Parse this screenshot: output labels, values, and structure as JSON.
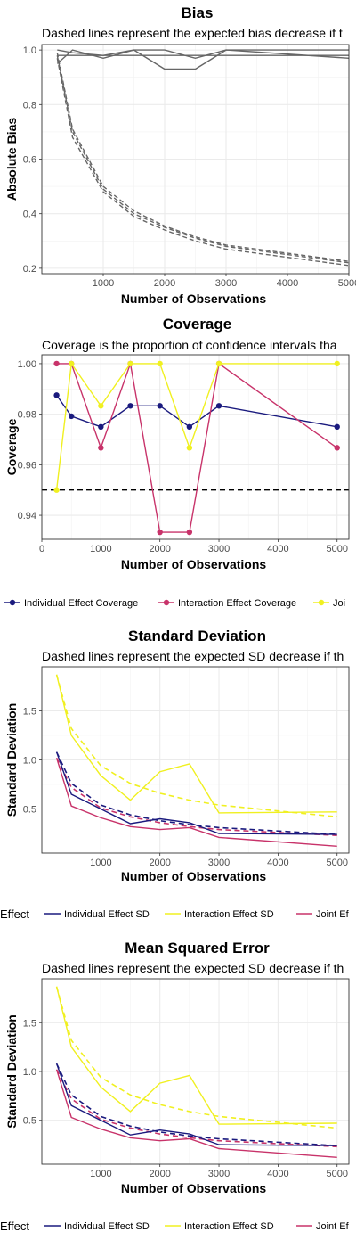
{
  "chart_data": [
    {
      "type": "line",
      "title": "Bias",
      "subtitle": "Dashed lines represent the expected bias decrease if t",
      "xlabel": "Number of Observations",
      "ylabel": "Absolute Bias",
      "xlim": [
        0,
        5000
      ],
      "ylim": [
        0.18,
        1.02
      ],
      "xticks": [
        1000,
        2000,
        3000,
        4000,
        5000
      ],
      "yticks": [
        0.2,
        0.4,
        0.6,
        0.8,
        1.0
      ],
      "ytick_labels": [
        "0.2",
        "0.4",
        "0.6",
        "0.8",
        "1.0"
      ],
      "grid": true,
      "line_color": "#666666",
      "x": [
        250,
        500,
        1000,
        1500,
        2000,
        2500,
        3000,
        5000
      ],
      "series": [
        {
          "values": [
            0.95,
            1.0,
            0.97,
            1.0,
            0.93,
            0.93,
            1.0,
            0.97
          ],
          "dashed": false
        },
        {
          "values": [
            1.0,
            0.99,
            0.98,
            1.0,
            1.0,
            0.97,
            1.0,
            1.0
          ],
          "dashed": false
        },
        {
          "values": [
            0.98,
            0.98,
            0.98,
            0.98,
            0.98,
            0.98,
            0.98,
            0.98
          ],
          "dashed": false
        },
        {
          "values": [
            0.97,
            0.68,
            0.48,
            0.39,
            0.34,
            0.3,
            0.27,
            0.21
          ],
          "dashed": true
        },
        {
          "values": [
            0.98,
            0.7,
            0.49,
            0.4,
            0.35,
            0.31,
            0.28,
            0.22
          ],
          "dashed": true
        },
        {
          "values": [
            0.99,
            0.71,
            0.5,
            0.41,
            0.355,
            0.315,
            0.285,
            0.225
          ],
          "dashed": true
        }
      ]
    },
    {
      "type": "line",
      "title": "Coverage",
      "subtitle": "Coverage is the proportion of confidence intervals tha",
      "xlabel": "Number of Observations",
      "ylabel": "Coverage",
      "xlim": [
        0,
        5200
      ],
      "ylim": [
        0.9305,
        1.0035
      ],
      "xticks": [
        0,
        1000,
        2000,
        3000,
        4000,
        5000
      ],
      "yticks": [
        0.94,
        0.96,
        0.98,
        1.0
      ],
      "ytick_labels": [
        "0.94",
        "0.96",
        "0.98",
        "1.00"
      ],
      "grid": true,
      "reference_line": 0.95,
      "legend_position": "bottom",
      "legend": [
        "Individual Effect Coverage",
        "Interaction Effect Coverage",
        "Joi"
      ],
      "x": [
        250,
        500,
        1000,
        1500,
        2000,
        2500,
        3000,
        5000
      ],
      "series": [
        {
          "name": "Individual Effect Coverage",
          "color": "#1a1a7e",
          "values": [
            0.9875,
            0.9792,
            0.975,
            0.9833,
            0.9833,
            0.975,
            0.9833,
            0.975
          ]
        },
        {
          "name": "Interaction Effect Coverage",
          "color": "#c8336a",
          "values": [
            1.0,
            1.0,
            0.9667,
            1.0,
            0.9333,
            0.9333,
            1.0,
            0.9667
          ]
        },
        {
          "name": "Joi",
          "color": "#f0f020",
          "values": [
            0.95,
            1.0,
            0.9833,
            1.0,
            1.0,
            0.9667,
            1.0,
            1.0
          ]
        }
      ]
    },
    {
      "type": "line",
      "title": "Standard Deviation",
      "subtitle": "Dashed lines represent the expected SD decrease if th",
      "xlabel": "Number of Observations",
      "ylabel": "Standard Deviation",
      "xlim": [
        0,
        5200
      ],
      "ylim": [
        0.05,
        1.95
      ],
      "xticks": [
        1000,
        2000,
        3000,
        4000,
        5000
      ],
      "yticks": [
        0.5,
        1.0,
        1.5
      ],
      "ytick_labels": [
        "0.5",
        "1.0",
        "1.5"
      ],
      "grid": true,
      "legend_position": "bottom",
      "legend_lead": "Effect",
      "legend": [
        "Individual Effect SD",
        "Interaction Effect SD",
        "Joint Ef"
      ],
      "x": [
        250,
        500,
        1000,
        1500,
        2000,
        2500,
        3000,
        5000
      ],
      "series": [
        {
          "name": "Individual Effect SD",
          "color": "#1a1a7e",
          "values": [
            1.08,
            0.65,
            0.5,
            0.35,
            0.4,
            0.36,
            0.25,
            0.24
          ]
        },
        {
          "name": "Interaction Effect SD",
          "color": "#f0f020",
          "values": [
            1.87,
            1.25,
            0.84,
            0.59,
            0.88,
            0.96,
            0.46,
            0.47
          ]
        },
        {
          "name": "Joint Ef",
          "color": "#c8336a",
          "values": [
            1.02,
            0.53,
            0.41,
            0.32,
            0.29,
            0.31,
            0.21,
            0.12
          ]
        }
      ],
      "expected": [
        {
          "color": "#1a1a7e",
          "values": [
            1.08,
            0.76,
            0.54,
            0.44,
            0.38,
            0.34,
            0.31,
            0.24
          ]
        },
        {
          "color": "#f0f020",
          "values": [
            1.87,
            1.32,
            0.94,
            0.76,
            0.66,
            0.59,
            0.54,
            0.42
          ]
        },
        {
          "color": "#c8336a",
          "values": [
            1.02,
            0.72,
            0.51,
            0.42,
            0.36,
            0.32,
            0.29,
            0.23
          ]
        }
      ]
    },
    {
      "type": "line",
      "title": "Mean Squared Error",
      "subtitle": "Dashed lines represent the expected SD decrease if th",
      "xlabel": "Number of Observations",
      "ylabel": "Standard Deviation",
      "xlim": [
        0,
        5200
      ],
      "ylim": [
        0.05,
        1.95
      ],
      "xticks": [
        1000,
        2000,
        3000,
        4000,
        5000
      ],
      "yticks": [
        0.5,
        1.0,
        1.5
      ],
      "ytick_labels": [
        "0.5",
        "1.0",
        "1.5"
      ],
      "grid": true,
      "legend_position": "bottom",
      "legend_lead": "Effect",
      "legend": [
        "Individual Effect SD",
        "Interaction Effect SD",
        "Joint Ef"
      ],
      "x": [
        250,
        500,
        1000,
        1500,
        2000,
        2500,
        3000,
        5000
      ],
      "series": [
        {
          "name": "Individual Effect SD",
          "color": "#1a1a7e",
          "values": [
            1.08,
            0.65,
            0.5,
            0.35,
            0.4,
            0.36,
            0.25,
            0.24
          ]
        },
        {
          "name": "Interaction Effect SD",
          "color": "#f0f020",
          "values": [
            1.87,
            1.25,
            0.84,
            0.59,
            0.88,
            0.96,
            0.46,
            0.47
          ]
        },
        {
          "name": "Joint Ef",
          "color": "#c8336a",
          "values": [
            1.02,
            0.53,
            0.41,
            0.32,
            0.29,
            0.31,
            0.21,
            0.12
          ]
        }
      ],
      "expected": [
        {
          "color": "#1a1a7e",
          "values": [
            1.08,
            0.76,
            0.54,
            0.44,
            0.38,
            0.34,
            0.31,
            0.24
          ]
        },
        {
          "color": "#f0f020",
          "values": [
            1.87,
            1.32,
            0.94,
            0.76,
            0.66,
            0.59,
            0.54,
            0.42
          ]
        },
        {
          "color": "#c8336a",
          "values": [
            1.02,
            0.72,
            0.51,
            0.42,
            0.36,
            0.32,
            0.29,
            0.23
          ]
        }
      ]
    }
  ]
}
